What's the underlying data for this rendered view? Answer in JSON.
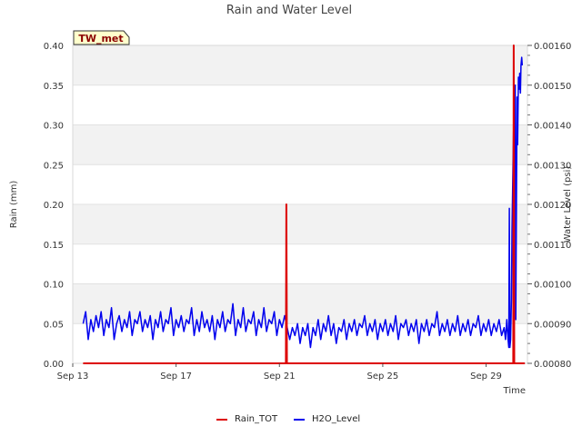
{
  "chart_data": {
    "type": "line",
    "title": "Rain and Water Level",
    "badge": "TW_met",
    "xlabel": "Time",
    "ylabel_left": "Rain (mm)",
    "ylabel_right": "Water Level (psi)",
    "x_range_days": [
      13,
      30.6
    ],
    "x_ticks": [
      {
        "day": 13,
        "label": "Sep 13"
      },
      {
        "day": 17,
        "label": "Sep 17"
      },
      {
        "day": 21,
        "label": "Sep 21"
      },
      {
        "day": 25,
        "label": "Sep 25"
      },
      {
        "day": 29,
        "label": "Sep 29"
      }
    ],
    "ylim_left": [
      0,
      0.4
    ],
    "y_ticks_left": [
      "0.00",
      "0.05",
      "0.10",
      "0.15",
      "0.20",
      "0.25",
      "0.30",
      "0.35",
      "0.40"
    ],
    "ylim_right": [
      0.0008,
      0.0016
    ],
    "y_ticks_right": [
      "0.00080",
      "0.00090",
      "0.00100",
      "0.00110",
      "0.00120",
      "0.00130",
      "0.00140",
      "0.00150",
      "0.00160"
    ],
    "series": [
      {
        "name": "Rain_TOT",
        "axis": "left",
        "color": "#dd0000",
        "points": [
          [
            13.4,
            0
          ],
          [
            21.25,
            0
          ],
          [
            21.27,
            0.2
          ],
          [
            21.29,
            0
          ],
          [
            30.05,
            0
          ],
          [
            30.07,
            0.4
          ],
          [
            30.09,
            0
          ],
          [
            30.5,
            0
          ]
        ]
      },
      {
        "name": "H2O_Level",
        "axis": "right",
        "color": "#0000ee",
        "points": [
          [
            13.4,
            0.0009
          ],
          [
            13.5,
            0.00093
          ],
          [
            13.6,
            0.00086
          ],
          [
            13.7,
            0.00091
          ],
          [
            13.8,
            0.00088
          ],
          [
            13.9,
            0.00092
          ],
          [
            14.0,
            0.00089
          ],
          [
            14.1,
            0.00093
          ],
          [
            14.2,
            0.00087
          ],
          [
            14.3,
            0.00091
          ],
          [
            14.4,
            0.00089
          ],
          [
            14.5,
            0.00094
          ],
          [
            14.6,
            0.00086
          ],
          [
            14.7,
            0.0009
          ],
          [
            14.8,
            0.00092
          ],
          [
            14.9,
            0.00088
          ],
          [
            15.0,
            0.00091
          ],
          [
            15.1,
            0.00089
          ],
          [
            15.2,
            0.00093
          ],
          [
            15.3,
            0.00087
          ],
          [
            15.4,
            0.00091
          ],
          [
            15.5,
            0.0009
          ],
          [
            15.6,
            0.00093
          ],
          [
            15.7,
            0.00088
          ],
          [
            15.8,
            0.00091
          ],
          [
            15.9,
            0.00089
          ],
          [
            16.0,
            0.00092
          ],
          [
            16.1,
            0.00086
          ],
          [
            16.2,
            0.00091
          ],
          [
            16.3,
            0.00089
          ],
          [
            16.4,
            0.00093
          ],
          [
            16.5,
            0.00088
          ],
          [
            16.6,
            0.00091
          ],
          [
            16.7,
            0.0009
          ],
          [
            16.8,
            0.00094
          ],
          [
            16.9,
            0.00087
          ],
          [
            17.0,
            0.00091
          ],
          [
            17.1,
            0.00089
          ],
          [
            17.2,
            0.00092
          ],
          [
            17.3,
            0.00088
          ],
          [
            17.4,
            0.00091
          ],
          [
            17.5,
            0.0009
          ],
          [
            17.6,
            0.00094
          ],
          [
            17.7,
            0.00087
          ],
          [
            17.8,
            0.00091
          ],
          [
            17.9,
            0.00088
          ],
          [
            18.0,
            0.00093
          ],
          [
            18.1,
            0.00089
          ],
          [
            18.2,
            0.00091
          ],
          [
            18.3,
            0.00088
          ],
          [
            18.4,
            0.00092
          ],
          [
            18.5,
            0.00086
          ],
          [
            18.6,
            0.00091
          ],
          [
            18.7,
            0.00089
          ],
          [
            18.8,
            0.00093
          ],
          [
            18.9,
            0.00088
          ],
          [
            19.0,
            0.00091
          ],
          [
            19.1,
            0.0009
          ],
          [
            19.2,
            0.00095
          ],
          [
            19.3,
            0.00087
          ],
          [
            19.4,
            0.00091
          ],
          [
            19.5,
            0.00089
          ],
          [
            19.6,
            0.00094
          ],
          [
            19.7,
            0.00088
          ],
          [
            19.8,
            0.00091
          ],
          [
            19.9,
            0.0009
          ],
          [
            20.0,
            0.00093
          ],
          [
            20.1,
            0.00087
          ],
          [
            20.2,
            0.00091
          ],
          [
            20.3,
            0.00089
          ],
          [
            20.4,
            0.00094
          ],
          [
            20.5,
            0.00088
          ],
          [
            20.6,
            0.00091
          ],
          [
            20.7,
            0.0009
          ],
          [
            20.8,
            0.00093
          ],
          [
            20.9,
            0.00087
          ],
          [
            21.0,
            0.00091
          ],
          [
            21.1,
            0.00089
          ],
          [
            21.2,
            0.00092
          ],
          [
            21.3,
            0.00089
          ],
          [
            21.4,
            0.00086
          ],
          [
            21.5,
            0.00089
          ],
          [
            21.6,
            0.00087
          ],
          [
            21.7,
            0.0009
          ],
          [
            21.8,
            0.00085
          ],
          [
            21.9,
            0.00089
          ],
          [
            22.0,
            0.00087
          ],
          [
            22.1,
            0.0009
          ],
          [
            22.2,
            0.00084
          ],
          [
            22.3,
            0.00089
          ],
          [
            22.4,
            0.00087
          ],
          [
            22.5,
            0.00091
          ],
          [
            22.6,
            0.00086
          ],
          [
            22.7,
            0.0009
          ],
          [
            22.8,
            0.00088
          ],
          [
            22.9,
            0.00092
          ],
          [
            23.0,
            0.00087
          ],
          [
            23.1,
            0.0009
          ],
          [
            23.2,
            0.00085
          ],
          [
            23.3,
            0.00089
          ],
          [
            23.4,
            0.00088
          ],
          [
            23.5,
            0.00091
          ],
          [
            23.6,
            0.00086
          ],
          [
            23.7,
            0.0009
          ],
          [
            23.8,
            0.00088
          ],
          [
            23.9,
            0.00091
          ],
          [
            24.0,
            0.00087
          ],
          [
            24.1,
            0.0009
          ],
          [
            24.2,
            0.00089
          ],
          [
            24.3,
            0.00092
          ],
          [
            24.4,
            0.00087
          ],
          [
            24.5,
            0.0009
          ],
          [
            24.6,
            0.00088
          ],
          [
            24.7,
            0.00091
          ],
          [
            24.8,
            0.00086
          ],
          [
            24.9,
            0.0009
          ],
          [
            25.0,
            0.00088
          ],
          [
            25.1,
            0.00091
          ],
          [
            25.2,
            0.00087
          ],
          [
            25.3,
            0.0009
          ],
          [
            25.4,
            0.00088
          ],
          [
            25.5,
            0.00092
          ],
          [
            25.6,
            0.00086
          ],
          [
            25.7,
            0.0009
          ],
          [
            25.8,
            0.00089
          ],
          [
            25.9,
            0.00091
          ],
          [
            26.0,
            0.00087
          ],
          [
            26.1,
            0.0009
          ],
          [
            26.2,
            0.00088
          ],
          [
            26.3,
            0.00091
          ],
          [
            26.4,
            0.00085
          ],
          [
            26.5,
            0.0009
          ],
          [
            26.6,
            0.00088
          ],
          [
            26.7,
            0.00091
          ],
          [
            26.8,
            0.00087
          ],
          [
            26.9,
            0.0009
          ],
          [
            27.0,
            0.00089
          ],
          [
            27.1,
            0.00093
          ],
          [
            27.2,
            0.00087
          ],
          [
            27.3,
            0.0009
          ],
          [
            27.4,
            0.00088
          ],
          [
            27.5,
            0.00091
          ],
          [
            27.6,
            0.00087
          ],
          [
            27.7,
            0.0009
          ],
          [
            27.8,
            0.00088
          ],
          [
            27.9,
            0.00092
          ],
          [
            28.0,
            0.00087
          ],
          [
            28.1,
            0.0009
          ],
          [
            28.2,
            0.00088
          ],
          [
            28.3,
            0.00091
          ],
          [
            28.4,
            0.00087
          ],
          [
            28.5,
            0.0009
          ],
          [
            28.6,
            0.00089
          ],
          [
            28.7,
            0.00092
          ],
          [
            28.8,
            0.00087
          ],
          [
            28.9,
            0.0009
          ],
          [
            29.0,
            0.00088
          ],
          [
            29.1,
            0.00091
          ],
          [
            29.2,
            0.00087
          ],
          [
            29.3,
            0.0009
          ],
          [
            29.4,
            0.00088
          ],
          [
            29.5,
            0.00091
          ],
          [
            29.6,
            0.00087
          ],
          [
            29.7,
            0.00089
          ],
          [
            29.75,
            0.00086
          ],
          [
            29.8,
            0.00091
          ],
          [
            29.85,
            0.00086
          ],
          [
            29.88,
            0.00084
          ],
          [
            29.9,
            0.00119
          ],
          [
            29.92,
            0.00084
          ],
          [
            29.95,
            0.00086
          ],
          [
            29.98,
            0.00096
          ],
          [
            30.0,
            0.00113
          ],
          [
            30.03,
            0.00125
          ],
          [
            30.06,
            0.00138
          ],
          [
            30.08,
            0.00145
          ],
          [
            30.1,
            0.00142
          ],
          [
            30.13,
            0.0015
          ],
          [
            30.15,
            0.00091
          ],
          [
            30.18,
            0.00128
          ],
          [
            30.2,
            0.00147
          ],
          [
            30.22,
            0.00135
          ],
          [
            30.25,
            0.00152
          ],
          [
            30.28,
            0.00149
          ],
          [
            30.3,
            0.00153
          ],
          [
            30.33,
            0.00148
          ],
          [
            30.35,
            0.00155
          ],
          [
            30.38,
            0.00157
          ],
          [
            30.4,
            0.00155
          ]
        ]
      }
    ],
    "legend_position": "bottom-center",
    "grid": true
  }
}
